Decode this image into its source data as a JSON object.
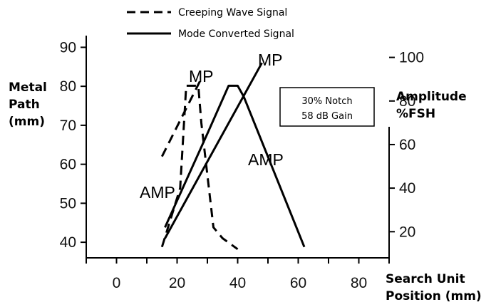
{
  "chart_data": {
    "type": "line",
    "legend": {
      "position": "top",
      "entries": [
        {
          "label": "Creeping Wave Signal",
          "style": "dashed"
        },
        {
          "label": "Mode Converted Signal",
          "style": "solid"
        }
      ]
    },
    "x_axis": {
      "label_line1": "Search Unit",
      "label_line2": "Position (mm)",
      "range": [
        -10,
        90
      ],
      "ticks": [
        0,
        20,
        40,
        60,
        80
      ]
    },
    "y_axis_left": {
      "label_line1": "Metal",
      "label_line2": "Path",
      "label_line3": "(mm)",
      "range": [
        36,
        93
      ],
      "ticks": [
        40,
        50,
        60,
        70,
        80,
        90
      ]
    },
    "y_axis_right": {
      "label_line1": "Amplitude",
      "label_line2": "%FSH",
      "range": [
        8,
        110
      ],
      "ticks": [
        20,
        40,
        60,
        80,
        100
      ]
    },
    "info_box": {
      "line1": "30% Notch",
      "line2": "58 dB Gain"
    },
    "annotations": {
      "creeping_mp": "MP",
      "mode_mp": "MP",
      "creeping_amp": "AMP",
      "mode_amp": "AMP"
    },
    "series": [
      {
        "name": "Creeping Wave Signal",
        "style": "dashed",
        "metal_path": {
          "x": [
            15,
            28
          ],
          "y": [
            62,
            82
          ]
        },
        "amplitude": {
          "x": [
            15,
            21,
            23,
            27,
            28,
            32,
            35,
            40
          ],
          "y": [
            13,
            40,
            87,
            87,
            70,
            22,
            17,
            12
          ]
        }
      },
      {
        "name": "Mode Converted Signal",
        "style": "solid",
        "metal_path": {
          "x": [
            16,
            48
          ],
          "y": [
            41,
            86
          ]
        },
        "amplitude": {
          "x": [
            16,
            30,
            37,
            40,
            42,
            62
          ],
          "y": [
            22,
            65,
            87,
            87,
            82,
            13
          ]
        }
      }
    ]
  }
}
